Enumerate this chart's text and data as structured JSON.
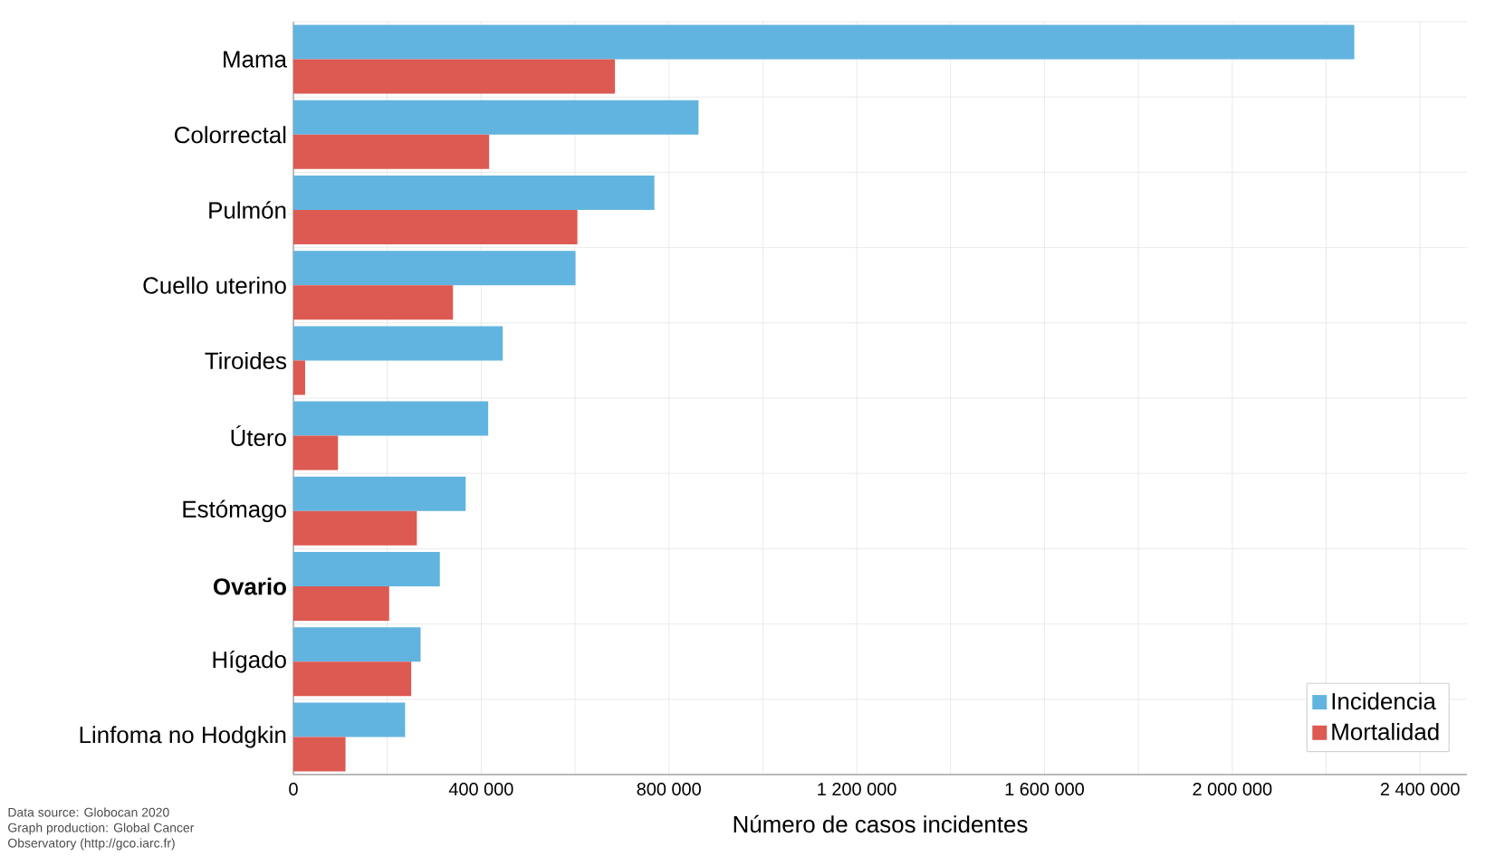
{
  "chart_data": {
    "type": "bar",
    "orientation": "horizontal",
    "categories": [
      "Mama",
      "Colorrectal",
      "Pulmón",
      "Cuello uterino",
      "Tiroides",
      "Útero",
      "Estómago",
      "**Ovario**",
      "Hígado",
      "Linfoma no Hodgkin"
    ],
    "series": [
      {
        "name": "Incidencia",
        "color": "#62b4e0",
        "values": [
          2260000,
          863000,
          769000,
          601000,
          446000,
          415000,
          367000,
          312000,
          271000,
          238000
        ]
      },
      {
        "name": "Mortalidad",
        "color": "#dc5a52",
        "values": [
          685000,
          417000,
          605000,
          340000,
          25000,
          95000,
          263000,
          204000,
          251000,
          111000
        ]
      }
    ],
    "xlabel": "Número de casos incidentes",
    "xlim": [
      0,
      2500000
    ],
    "xticks": [
      0,
      {
        "value": 200000,
        "label": null
      },
      {
        "value": 400000,
        "label": "400 000"
      },
      {
        "value": 600000,
        "label": null
      },
      {
        "value": 800000,
        "label": "800 000"
      },
      {
        "value": 1000000,
        "label": null
      },
      {
        "value": 1200000,
        "label": "1 200 000"
      },
      {
        "value": 1400000,
        "label": null
      },
      {
        "value": 1600000,
        "label": "1 600 000"
      },
      {
        "value": 1800000,
        "label": null
      },
      {
        "value": 2000000,
        "label": "2 000 000"
      },
      {
        "value": 2200000,
        "label": null
      },
      {
        "value": 2400000,
        "label": "2 400 000"
      }
    ],
    "grid": true,
    "legend": "bottom right",
    "annotations": [
      "Data source: Globocan 2020",
      "Graph production: Global Cancer",
      "Observatory (http://gco.iarc.fr)"
    ]
  }
}
